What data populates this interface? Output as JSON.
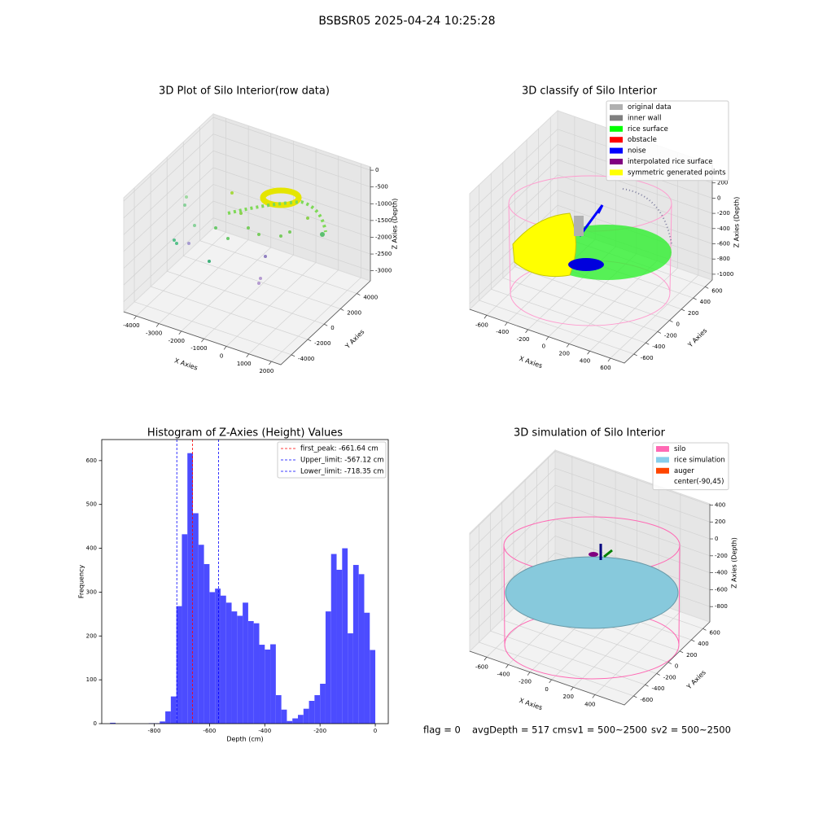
{
  "title": "BSBSR05 2025-04-24 10:25:28",
  "footer": [
    "flag = 0",
    "avgDepth = 517 cm",
    "sv1 = 500~2500",
    "sv2 = 500~2500"
  ],
  "chart_data": [
    {
      "type": "scatter3d",
      "title": "3D Plot of Silo Interior(row data)",
      "x_label": "X Axies",
      "y_label": "Y Axies",
      "z_label": "Z Axies (Depth)",
      "xlim": [
        -4560,
        2420
      ],
      "ylim": [
        -5300,
        5660
      ],
      "zlim": [
        -3300,
        100
      ],
      "xticks": [
        -4000,
        -3000,
        -2000,
        -1000,
        0,
        1000,
        2000
      ],
      "yticks": [
        -4000,
        -2000,
        0,
        2000,
        4000
      ],
      "zticks": [
        0,
        -500,
        -1000,
        -1500,
        -2000,
        -2500,
        -3000
      ]
    },
    {
      "type": "scatter3d",
      "title": "3D classify of Silo Interior",
      "x_label": "X Axies",
      "y_label": "Y Axies",
      "z_label": "Z Axies (Depth)",
      "xlim": [
        -765,
        735
      ],
      "ylim": [
        -760,
        720
      ],
      "zlim": [
        -1076,
        443
      ],
      "xticks": [
        -600,
        -400,
        -200,
        0,
        200,
        400,
        600
      ],
      "yticks": [
        -600,
        -400,
        -200,
        0,
        200,
        400,
        600
      ],
      "zticks": [
        200,
        0,
        -200,
        -400,
        -600,
        -800,
        -1000
      ],
      "legend": [
        {
          "name": "original data",
          "color": "#b0b0b0"
        },
        {
          "name": "inner wall",
          "color": "#808080"
        },
        {
          "name": "rice surface",
          "color": "#00ff00"
        },
        {
          "name": "obstacle",
          "color": "#ff0000"
        },
        {
          "name": "noise",
          "color": "#0000ff"
        },
        {
          "name": "interpolated rice surface",
          "color": "#800080"
        },
        {
          "name": "symmetric generated points",
          "color": "#ffff00"
        }
      ]
    },
    {
      "type": "histogram",
      "title": "Histogram of Z-Axies (Height) Values",
      "x_label": "Depth (cm)",
      "y_label": "Frequency",
      "color": "#4c4cff",
      "xlim": [
        -990,
        47
      ],
      "ylim": [
        0,
        648
      ],
      "xticks": [
        -800,
        -600,
        -400,
        -200,
        0
      ],
      "yticks": [
        0,
        100,
        200,
        300,
        400,
        500,
        600
      ],
      "bins": [
        -980,
        -960,
        -940,
        -920,
        -900,
        -880,
        -860,
        -840,
        -820,
        -800,
        -780,
        -760,
        -740,
        -720,
        -700,
        -680,
        -660,
        -640,
        -620,
        -600,
        -580,
        -560,
        -540,
        -520,
        -500,
        -480,
        -460,
        -440,
        -420,
        -400,
        -380,
        -360,
        -340,
        -320,
        -300,
        -280,
        -260,
        -240,
        -220,
        -200,
        -180,
        -160,
        -140,
        -120,
        -100,
        -80,
        -60,
        -40,
        -20,
        0
      ],
      "values": [
        0,
        2,
        0,
        0,
        0,
        0,
        0,
        0,
        1,
        1,
        5,
        28,
        62,
        268,
        432,
        617,
        480,
        408,
        364,
        300,
        308,
        292,
        276,
        256,
        246,
        276,
        234,
        229,
        180,
        169,
        181,
        65,
        32,
        6,
        12,
        20,
        34,
        52,
        65,
        91,
        256,
        387,
        351,
        400,
        206,
        362,
        341,
        253,
        168
      ],
      "lines": [
        {
          "label": "first_peak: -661.64 cm",
          "value": -661.64,
          "color": "#ff0000"
        },
        {
          "label": "Upper_limit: -567.12 cm",
          "value": -567.12,
          "color": "#0000ff"
        },
        {
          "label": "Lower_limit: -718.35 cm",
          "value": -718.35,
          "color": "#0000ff"
        }
      ]
    },
    {
      "type": "surface3d",
      "title": "3D simulation of Silo Interior",
      "x_label": "X Axies",
      "y_label": "Y Axies",
      "z_label": "Z Axies (Depth)",
      "xlim": [
        -757,
        672
      ],
      "ylim": [
        -760,
        720
      ],
      "zlim": [
        -981,
        414
      ],
      "xticks": [
        -600,
        -400,
        -200,
        0,
        200,
        400
      ],
      "yticks": [
        -600,
        -400,
        -200,
        0,
        200,
        400,
        600
      ],
      "zticks": [
        400,
        200,
        0,
        -200,
        -400,
        -600,
        -800
      ],
      "legend": [
        {
          "name": "silo",
          "color": "#ff69b4"
        },
        {
          "name": "rice simulation",
          "color": "#87ceeb"
        },
        {
          "name": "auger",
          "color": "#ff4500"
        },
        {
          "name": "center(-90,45)",
          "color": "#ffffff"
        }
      ]
    }
  ]
}
